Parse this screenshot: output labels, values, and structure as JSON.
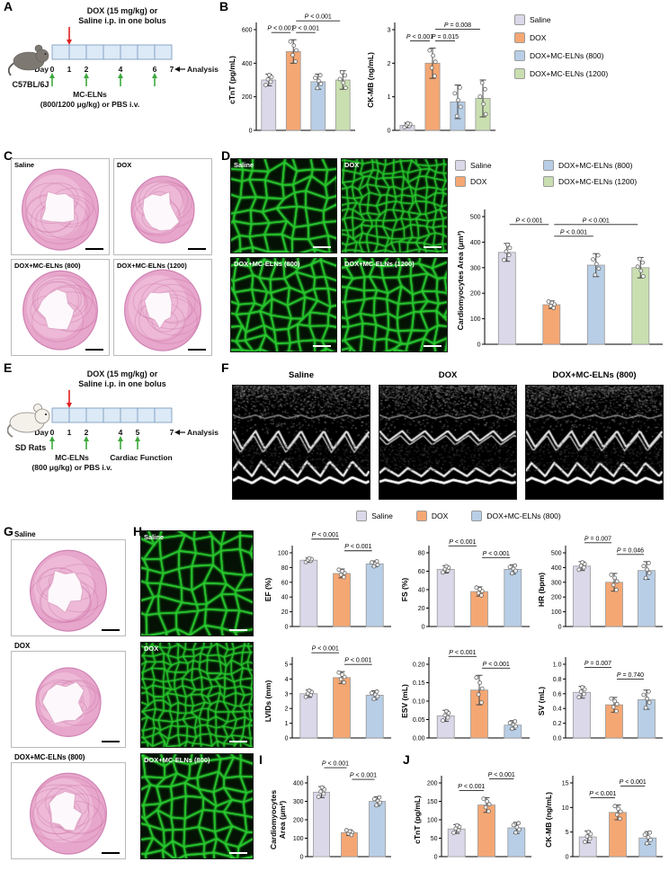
{
  "colors": {
    "saline": "#DBD8E9",
    "dox": "#F5A773",
    "eln800": "#B8CEE6",
    "eln1200": "#C9DFB0",
    "bar_stroke": "#999999",
    "sig_line": "#222222",
    "timeline_box_fill": "#DCE9F6",
    "timeline_box_stroke": "#7F9FC0",
    "dox_arrow": "#E02020",
    "eln_arrow": "#3DA83D",
    "wga_green": "#2BD232",
    "he_pink": "#E7A6CB"
  },
  "group_labels": {
    "saline": "Saline",
    "dox": "DOX",
    "eln800": "DOX+MC-ELNs (800)",
    "eln1200": "DOX+MC-ELNs (1200)"
  },
  "panels": {
    "A": {
      "label": "A",
      "injection_line1": "DOX (15 mg/kg) or",
      "injection_line2": "Saline i.p. in one bolus",
      "model": "C57BL/6J",
      "day_word": "Day",
      "days": [
        "0",
        "1",
        "2",
        "4",
        "6",
        "7"
      ],
      "day_positions": [
        0,
        1,
        2,
        4,
        6,
        7
      ],
      "total_days": 7,
      "dox_day": 1,
      "eln_days": [
        0,
        2,
        4,
        6
      ],
      "analysis_label": "Analysis",
      "treatment_line1": "MC-ELNs",
      "treatment_line2": "(800/1200 μg/kg) or PBS i.v."
    },
    "B": {
      "label": "B"
    },
    "C": {
      "label": "C",
      "image_labels": [
        "Saline",
        "DOX",
        "DOX+MC-ELNs (800)",
        "DOX+MC-ELNs (1200)"
      ]
    },
    "D": {
      "label": "D",
      "image_labels": [
        "Saline",
        "DOX",
        "DOX+MC-ELNs (800)",
        "DOX+MC-ELNs (1200)"
      ]
    },
    "E": {
      "label": "E",
      "injection_line1": "DOX (15 mg/kg) or",
      "injection_line2": "Saline i.p. in one bolus",
      "model": "SD Rats",
      "day_word": "Day",
      "days": [
        "0",
        "1",
        "2",
        "4",
        "5",
        "7"
      ],
      "day_positions": [
        0,
        1,
        2,
        4,
        5,
        7
      ],
      "total_days": 7,
      "dox_day": 1,
      "eln_days": [
        0,
        2,
        4
      ],
      "cardiac_day": 5,
      "cardiac_label": "Cardiac Function",
      "analysis_label": "Analysis",
      "treatment_line1": "MC-ELNs",
      "treatment_line2": "(800 μg/kg) or PBS i.v."
    },
    "F": {
      "label": "F",
      "image_labels": [
        "Saline",
        "DOX",
        "DOX+MC-ELNs (800)"
      ]
    },
    "G": {
      "label": "G",
      "image_labels": [
        "Saline",
        "DOX",
        "DOX+MC-ELNs (800)"
      ]
    },
    "H": {
      "label": "H",
      "image_labels": [
        "Saline",
        "DOX",
        "DOX+MC-ELNs (800)"
      ]
    },
    "I": {
      "label": "I"
    },
    "J": {
      "label": "J"
    }
  },
  "chart_data": [
    {
      "id": "b-ctnt",
      "type": "bar",
      "title": "",
      "ylabel": "cTnT (pg/mL)",
      "ylim": [
        0,
        600
      ],
      "yticks": [
        "0",
        "200",
        "400",
        "600"
      ],
      "categories": [
        "Saline",
        "DOX",
        "DOX+MC-ELNs (800)",
        "DOX+MC-ELNs (1200)"
      ],
      "group_keys": [
        "saline",
        "dox",
        "eln800",
        "eln1200"
      ],
      "values": [
        300,
        470,
        290,
        300
      ],
      "errors": [
        35,
        70,
        45,
        55
      ],
      "sig": [
        {
          "a": 0,
          "b": 1,
          "label": "P < 0.001",
          "level": 1
        },
        {
          "a": 1,
          "b": 2,
          "label": "P < 0.001",
          "level": 1
        },
        {
          "a": 1,
          "b": 3,
          "label": "P < 0.001",
          "level": 2
        }
      ]
    },
    {
      "id": "b-ckmb",
      "type": "bar",
      "title": "",
      "ylabel": "CK-MB (ng/mL)",
      "ylim": [
        0,
        3
      ],
      "yticks": [
        "0",
        "1",
        "2",
        "3"
      ],
      "categories": [
        "Saline",
        "DOX",
        "DOX+MC-ELNs (800)",
        "DOX+MC-ELNs (1200)"
      ],
      "group_keys": [
        "saline",
        "dox",
        "eln800",
        "eln1200"
      ],
      "values": [
        0.15,
        2.0,
        0.85,
        0.95
      ],
      "errors": [
        0.07,
        0.45,
        0.5,
        0.55
      ],
      "sig": [
        {
          "a": 0,
          "b": 1,
          "label": "P < 0.001",
          "level": 1
        },
        {
          "a": 1,
          "b": 2,
          "label": "P = 0.015",
          "level": 1
        },
        {
          "a": 1,
          "b": 3,
          "label": "P = 0.008",
          "level": 2
        }
      ]
    },
    {
      "id": "d-area",
      "type": "bar",
      "title": "",
      "ylabel": "Cardiomyocytes Area (μm²)",
      "ylim": [
        0,
        500
      ],
      "yticks": [
        "0",
        "100",
        "200",
        "300",
        "400",
        "500"
      ],
      "categories": [
        "Saline",
        "DOX",
        "DOX+MC-ELNs (800)",
        "DOX+MC-ELNs (1200)"
      ],
      "group_keys": [
        "saline",
        "dox",
        "eln800",
        "eln1200"
      ],
      "values": [
        360,
        155,
        310,
        300
      ],
      "errors": [
        35,
        15,
        45,
        40
      ],
      "sig": [
        {
          "a": 0,
          "b": 1,
          "label": "P < 0.001",
          "level": 2
        },
        {
          "a": 1,
          "b": 2,
          "label": "P < 0.001",
          "level": 1
        },
        {
          "a": 1,
          "b": 3,
          "label": "P < 0.001",
          "level": 2
        }
      ]
    },
    {
      "id": "h-ef",
      "type": "bar",
      "title": "",
      "ylabel": "EF (%)",
      "ylim": [
        0,
        100
      ],
      "yticks": [
        "0",
        "20",
        "40",
        "60",
        "80",
        "100"
      ],
      "categories": [
        "Saline",
        "DOX",
        "DOX+MC-ELNs (800)"
      ],
      "group_keys": [
        "saline",
        "dox",
        "eln800"
      ],
      "values": [
        90,
        72,
        85
      ],
      "errors": [
        3,
        6,
        4
      ],
      "sig": [
        {
          "a": 0,
          "b": 1,
          "label": "P < 0.001",
          "level": 2
        },
        {
          "a": 1,
          "b": 2,
          "label": "P < 0.001",
          "level": 1
        }
      ]
    },
    {
      "id": "h-fs",
      "type": "bar",
      "title": "",
      "ylabel": "FS (%)",
      "ylim": [
        0,
        80
      ],
      "yticks": [
        "0",
        "20",
        "40",
        "60",
        "80"
      ],
      "categories": [
        "Saline",
        "DOX",
        "DOX+MC-ELNs (800)"
      ],
      "group_keys": [
        "saline",
        "dox",
        "eln800"
      ],
      "values": [
        62,
        38,
        62
      ],
      "errors": [
        4,
        5,
        5
      ],
      "sig": [
        {
          "a": 0,
          "b": 1,
          "label": "P < 0.001",
          "level": 2
        },
        {
          "a": 1,
          "b": 2,
          "label": "P < 0.001",
          "level": 1
        }
      ]
    },
    {
      "id": "h-hr",
      "type": "bar",
      "title": "",
      "ylabel": "HR (bpm)",
      "ylim": [
        0,
        500
      ],
      "yticks": [
        "0",
        "100",
        "200",
        "300",
        "400",
        "500"
      ],
      "categories": [
        "Saline",
        "DOX",
        "DOX+MC-ELNs (800)"
      ],
      "group_keys": [
        "saline",
        "dox",
        "eln800"
      ],
      "values": [
        410,
        300,
        380
      ],
      "errors": [
        30,
        60,
        60
      ],
      "sig": [
        {
          "a": 0,
          "b": 1,
          "label": "P = 0.007",
          "level": 2
        },
        {
          "a": 1,
          "b": 2,
          "label": "P = 0.046",
          "level": 1
        }
      ]
    },
    {
      "id": "h-lvids",
      "type": "bar",
      "title": "",
      "ylabel": "LVIDs (mm)",
      "ylim": [
        0,
        5
      ],
      "yticks": [
        "0",
        "1",
        "2",
        "3",
        "4",
        "5"
      ],
      "categories": [
        "Saline",
        "DOX",
        "DOX+MC-ELNs (800)"
      ],
      "group_keys": [
        "saline",
        "dox",
        "eln800"
      ],
      "values": [
        3.0,
        4.1,
        2.9
      ],
      "errors": [
        0.25,
        0.4,
        0.3
      ],
      "sig": [
        {
          "a": 0,
          "b": 1,
          "label": "P < 0.001",
          "level": 2
        },
        {
          "a": 1,
          "b": 2,
          "label": "P < 0.001",
          "level": 1
        }
      ]
    },
    {
      "id": "h-esv",
      "type": "bar",
      "title": "",
      "ylabel": "ESV (mL)",
      "ylim": [
        0,
        0.2
      ],
      "yticks": [
        "0.00",
        "0.05",
        "0.10",
        "0.15",
        "0.20"
      ],
      "categories": [
        "Saline",
        "DOX",
        "DOX+MC-ELNs (800)"
      ],
      "group_keys": [
        "saline",
        "dox",
        "eln800"
      ],
      "values": [
        0.06,
        0.13,
        0.035
      ],
      "errors": [
        0.015,
        0.04,
        0.012
      ],
      "sig": [
        {
          "a": 0,
          "b": 1,
          "label": "P < 0.001",
          "level": 2
        },
        {
          "a": 1,
          "b": 2,
          "label": "P < 0.001",
          "level": 1
        }
      ]
    },
    {
      "id": "h-sv",
      "type": "bar",
      "title": "",
      "ylabel": "SV (mL)",
      "ylim": [
        0,
        1.0
      ],
      "yticks": [
        "0.0",
        "0.2",
        "0.4",
        "0.6",
        "0.8",
        "1.0"
      ],
      "categories": [
        "Saline",
        "DOX",
        "DOX+MC-ELNs (800)"
      ],
      "group_keys": [
        "saline",
        "dox",
        "eln800"
      ],
      "values": [
        0.62,
        0.45,
        0.52
      ],
      "errors": [
        0.08,
        0.1,
        0.13
      ],
      "sig": [
        {
          "a": 0,
          "b": 1,
          "label": "P = 0.007",
          "level": 2
        },
        {
          "a": 1,
          "b": 2,
          "label": "P = 0.740",
          "level": 1
        }
      ]
    },
    {
      "id": "i-area",
      "type": "bar",
      "title": "",
      "ylabel": [
        "Cardiomyocytes",
        "Area (μm²)"
      ],
      "ml": 44,
      "ylim": [
        0,
        400
      ],
      "yticks": [
        "0",
        "100",
        "200",
        "300",
        "400"
      ],
      "categories": [
        "Saline",
        "DOX",
        "DOX+MC-ELNs (800)"
      ],
      "group_keys": [
        "saline",
        "dox",
        "eln800"
      ],
      "values": [
        350,
        130,
        300
      ],
      "errors": [
        30,
        15,
        25
      ],
      "sig": [
        {
          "a": 0,
          "b": 1,
          "label": "P < 0.001",
          "level": 2
        },
        {
          "a": 1,
          "b": 2,
          "label": "P < 0.001",
          "level": 1
        }
      ]
    },
    {
      "id": "j-ctnt",
      "type": "bar",
      "title": "",
      "ylabel": "cTnT (pg/mL)",
      "ylim": [
        0,
        200
      ],
      "yticks": [
        "0",
        "50",
        "100",
        "150",
        "200"
      ],
      "categories": [
        "Saline",
        "DOX",
        "DOX+MC-ELNs (800)"
      ],
      "group_keys": [
        "saline",
        "dox",
        "eln800"
      ],
      "values": [
        75,
        140,
        78
      ],
      "errors": [
        12,
        20,
        15
      ],
      "sig": [
        {
          "a": 0,
          "b": 1,
          "label": "P < 0.001",
          "level": 1
        },
        {
          "a": 1,
          "b": 2,
          "label": "P < 0.001",
          "level": 2
        }
      ]
    },
    {
      "id": "j-ckmb",
      "type": "bar",
      "title": "",
      "ylabel": "CK-MB (ng/mL)",
      "ylim": [
        0,
        15
      ],
      "yticks": [
        "0",
        "5",
        "10",
        "15"
      ],
      "categories": [
        "Saline",
        "DOX",
        "DOX+MC-ELNs (800)"
      ],
      "group_keys": [
        "saline",
        "dox",
        "eln800"
      ],
      "values": [
        4,
        9,
        3.8
      ],
      "errors": [
        1.2,
        1.5,
        1.3
      ],
      "sig": [
        {
          "a": 0,
          "b": 1,
          "label": "P < 0.001",
          "level": 1
        },
        {
          "a": 1,
          "b": 2,
          "label": "P < 0.001",
          "level": 2
        }
      ]
    }
  ]
}
